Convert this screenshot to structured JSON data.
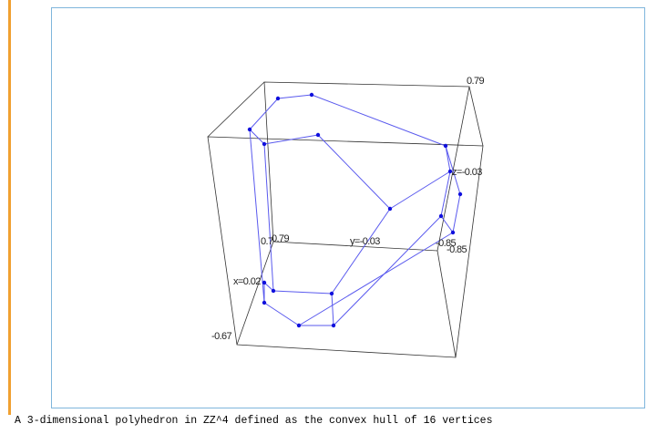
{
  "plot": {
    "labels": [
      "0.79",
      "z=-0.03",
      "0.7",
      "0.79",
      "y=-0.03",
      "-0.85",
      "-0.85",
      "x=0.02",
      "-0.67"
    ]
  },
  "caption": "A 3-dimensional polyhedron in ZZ^4 defined as the convex hull of 16 vertices"
}
